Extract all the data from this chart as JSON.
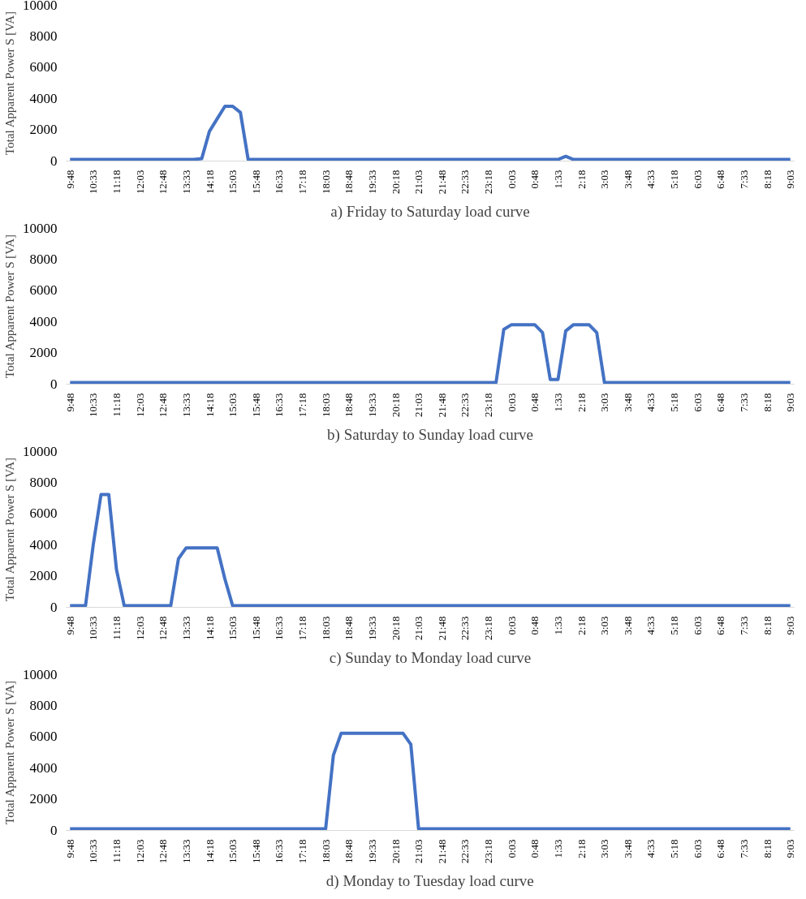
{
  "chart_data": [
    {
      "type": "line",
      "title": "a) Friday to Saturday load curve",
      "ylabel": "Total Apparent Power S [VA]",
      "categories": [
        "9:48",
        null,
        null,
        "10:33",
        null,
        null,
        "11:18",
        null,
        null,
        "12:03",
        null,
        null,
        "12:48",
        null,
        null,
        "13:33",
        null,
        null,
        "14:18",
        null,
        null,
        "15:03",
        null,
        null,
        "15:48",
        null,
        null,
        "16:33",
        null,
        null,
        "17:18",
        null,
        null,
        "18:03",
        null,
        null,
        "18:48",
        null,
        null,
        "19:33",
        null,
        null,
        "20:18",
        null,
        null,
        "21:03",
        null,
        null,
        "21:48",
        null,
        null,
        "22:33",
        null,
        null,
        "23:18",
        null,
        null,
        "0:03",
        null,
        null,
        "0:48",
        null,
        null,
        "1:33",
        null,
        null,
        "2:18",
        null,
        null,
        "3:03",
        null,
        null,
        "3:48",
        null,
        null,
        "4:33",
        null,
        null,
        "5:18",
        null,
        null,
        "6:03",
        null,
        null,
        "6:48",
        null,
        null,
        "7:33",
        null,
        null,
        "8:18",
        null,
        null,
        "9:03"
      ],
      "series": [
        {
          "color": "#4472c4",
          "values": [
            100,
            100,
            100,
            100,
            100,
            100,
            100,
            100,
            100,
            100,
            100,
            100,
            100,
            100,
            100,
            100,
            100,
            150,
            1900,
            2700,
            3500,
            3500,
            3100,
            100,
            100,
            100,
            100,
            100,
            100,
            100,
            100,
            100,
            100,
            100,
            100,
            100,
            100,
            100,
            100,
            100,
            100,
            100,
            100,
            100,
            100,
            100,
            100,
            100,
            100,
            100,
            100,
            100,
            100,
            100,
            100,
            100,
            100,
            100,
            100,
            100,
            100,
            100,
            100,
            100,
            300,
            100,
            100,
            100,
            100,
            100,
            100,
            100,
            100,
            100,
            100,
            100,
            100,
            100,
            100,
            100,
            100,
            100,
            100,
            100,
            100,
            100,
            100,
            100,
            100,
            100,
            100,
            100,
            100,
            100
          ]
        }
      ],
      "ylim": [
        0,
        10000
      ],
      "yticks": [
        0,
        2000,
        4000,
        6000,
        8000,
        10000
      ],
      "grid": false
    },
    {
      "type": "line",
      "title": "b) Saturday to Sunday load curve",
      "ylabel": "Total Apparent Power S [VA]",
      "categories": [
        "9:48",
        null,
        null,
        "10:33",
        null,
        null,
        "11:18",
        null,
        null,
        "12:03",
        null,
        null,
        "12:48",
        null,
        null,
        "13:33",
        null,
        null,
        "14:18",
        null,
        null,
        "15:03",
        null,
        null,
        "15:48",
        null,
        null,
        "16:33",
        null,
        null,
        "17:18",
        null,
        null,
        "18:03",
        null,
        null,
        "18:48",
        null,
        null,
        "19:33",
        null,
        null,
        "20:18",
        null,
        null,
        "21:03",
        null,
        null,
        "21:48",
        null,
        null,
        "22:33",
        null,
        null,
        "23:18",
        null,
        null,
        "0:03",
        null,
        null,
        "0:48",
        null,
        null,
        "1:33",
        null,
        null,
        "2:18",
        null,
        null,
        "3:03",
        null,
        null,
        "3:48",
        null,
        null,
        "4:33",
        null,
        null,
        "5:18",
        null,
        null,
        "6:03",
        null,
        null,
        "6:48",
        null,
        null,
        "7:33",
        null,
        null,
        "8:18",
        null,
        null,
        "9:03"
      ],
      "series": [
        {
          "color": "#4472c4",
          "values": [
            100,
            100,
            100,
            100,
            100,
            100,
            100,
            100,
            100,
            100,
            100,
            100,
            100,
            100,
            100,
            100,
            100,
            100,
            100,
            100,
            100,
            100,
            100,
            100,
            100,
            100,
            100,
            100,
            100,
            100,
            100,
            100,
            100,
            100,
            100,
            100,
            100,
            100,
            100,
            100,
            100,
            100,
            100,
            100,
            100,
            100,
            100,
            100,
            100,
            100,
            100,
            100,
            100,
            100,
            100,
            100,
            3500,
            3800,
            3800,
            3800,
            3800,
            3300,
            300,
            300,
            3400,
            3800,
            3800,
            3800,
            3300,
            100,
            100,
            100,
            100,
            100,
            100,
            100,
            100,
            100,
            100,
            100,
            100,
            100,
            100,
            100,
            100,
            100,
            100,
            100,
            100,
            100,
            100,
            100,
            100,
            100
          ]
        }
      ],
      "ylim": [
        0,
        10000
      ],
      "yticks": [
        0,
        2000,
        4000,
        6000,
        8000,
        10000
      ],
      "grid": false
    },
    {
      "type": "line",
      "title": "c) Sunday to Monday load curve",
      "ylabel": "Total Apparent Power S [VA]",
      "categories": [
        "9:48",
        null,
        null,
        "10:33",
        null,
        null,
        "11:18",
        null,
        null,
        "12:03",
        null,
        null,
        "12:48",
        null,
        null,
        "13:33",
        null,
        null,
        "14:18",
        null,
        null,
        "15:03",
        null,
        null,
        "15:48",
        null,
        null,
        "16:33",
        null,
        null,
        "17:18",
        null,
        null,
        "18:03",
        null,
        null,
        "18:48",
        null,
        null,
        "19:33",
        null,
        null,
        "20:18",
        null,
        null,
        "21:03",
        null,
        null,
        "21:48",
        null,
        null,
        "22:33",
        null,
        null,
        "23:18",
        null,
        null,
        "0:03",
        null,
        null,
        "0:48",
        null,
        null,
        "1:33",
        null,
        null,
        "2:18",
        null,
        null,
        "3:03",
        null,
        null,
        "3:48",
        null,
        null,
        "4:33",
        null,
        null,
        "5:18",
        null,
        null,
        "6:03",
        null,
        null,
        "6:48",
        null,
        null,
        "7:33",
        null,
        null,
        "8:18",
        null,
        null,
        "9:03"
      ],
      "series": [
        {
          "color": "#4472c4",
          "values": [
            100,
            100,
            100,
            4000,
            7200,
            7200,
            2400,
            100,
            100,
            100,
            100,
            100,
            100,
            100,
            3100,
            3800,
            3800,
            3800,
            3800,
            3800,
            1800,
            100,
            100,
            100,
            100,
            100,
            100,
            100,
            100,
            100,
            100,
            100,
            100,
            100,
            100,
            100,
            100,
            100,
            100,
            100,
            100,
            100,
            100,
            100,
            100,
            100,
            100,
            100,
            100,
            100,
            100,
            100,
            100,
            100,
            100,
            100,
            100,
            100,
            100,
            100,
            100,
            100,
            100,
            100,
            100,
            100,
            100,
            100,
            100,
            100,
            100,
            100,
            100,
            100,
            100,
            100,
            100,
            100,
            100,
            100,
            100,
            100,
            100,
            100,
            100,
            100,
            100,
            100,
            100,
            100,
            100,
            100,
            100,
            100
          ]
        }
      ],
      "ylim": [
        0,
        10000
      ],
      "yticks": [
        0,
        2000,
        4000,
        6000,
        8000,
        10000
      ],
      "grid": false
    },
    {
      "type": "line",
      "title": "d) Monday to Tuesday load curve",
      "ylabel": "Total Apparent Power S [VA]",
      "categories": [
        "9:48",
        null,
        null,
        "10:33",
        null,
        null,
        "11:18",
        null,
        null,
        "12:03",
        null,
        null,
        "12:48",
        null,
        null,
        "13:33",
        null,
        null,
        "14:18",
        null,
        null,
        "15:03",
        null,
        null,
        "15:48",
        null,
        null,
        "16:33",
        null,
        null,
        "17:18",
        null,
        null,
        "18:03",
        null,
        null,
        "18:48",
        null,
        null,
        "19:33",
        null,
        null,
        "20:18",
        null,
        null,
        "21:03",
        null,
        null,
        "21:48",
        null,
        null,
        "22:33",
        null,
        null,
        "23:18",
        null,
        null,
        "0:03",
        null,
        null,
        "0:48",
        null,
        null,
        "1:33",
        null,
        null,
        "2:18",
        null,
        null,
        "3:03",
        null,
        null,
        "3:48",
        null,
        null,
        "4:33",
        null,
        null,
        "5:18",
        null,
        null,
        "6:03",
        null,
        null,
        "6:48",
        null,
        null,
        "7:33",
        null,
        null,
        "8:18",
        null,
        null,
        "9:03"
      ],
      "series": [
        {
          "color": "#4472c4",
          "values": [
            100,
            100,
            100,
            100,
            100,
            100,
            100,
            100,
            100,
            100,
            100,
            100,
            100,
            100,
            100,
            100,
            100,
            100,
            100,
            100,
            100,
            100,
            100,
            100,
            100,
            100,
            100,
            100,
            100,
            100,
            100,
            100,
            100,
            100,
            4800,
            6200,
            6200,
            6200,
            6200,
            6200,
            6200,
            6200,
            6200,
            6200,
            5500,
            100,
            100,
            100,
            100,
            100,
            100,
            100,
            100,
            100,
            100,
            100,
            100,
            100,
            100,
            100,
            100,
            100,
            100,
            100,
            100,
            100,
            100,
            100,
            100,
            100,
            100,
            100,
            100,
            100,
            100,
            100,
            100,
            100,
            100,
            100,
            100,
            100,
            100,
            100,
            100,
            100,
            100,
            100,
            100,
            100,
            100,
            100,
            100,
            100
          ]
        }
      ],
      "ylim": [
        0,
        10000
      ],
      "yticks": [
        0,
        2000,
        4000,
        6000,
        8000,
        10000
      ],
      "grid": false
    }
  ]
}
